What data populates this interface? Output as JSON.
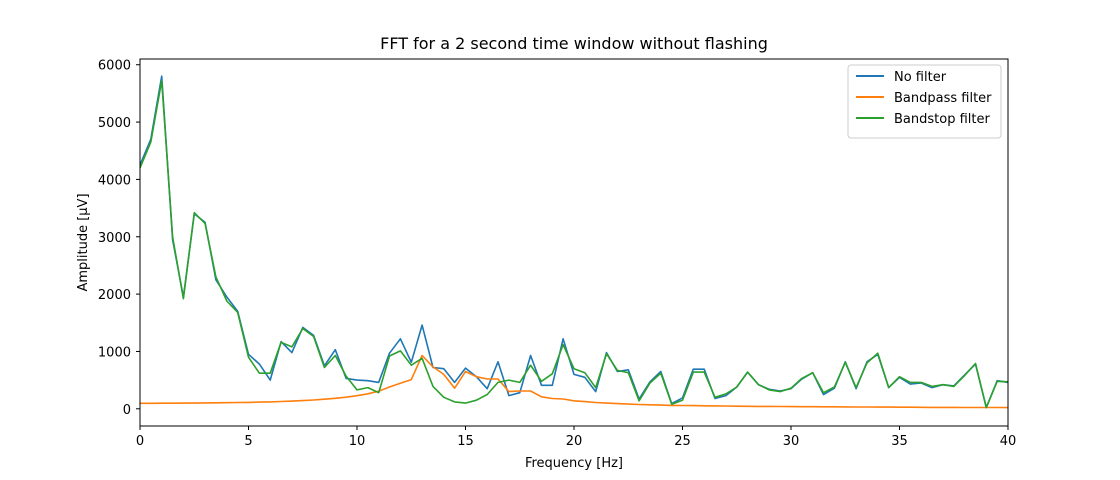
{
  "chart_data": {
    "type": "line",
    "title": "FFT for a 2 second time window without flashing",
    "xlabel": "Frequency [Hz]",
    "ylabel": "Amplitude [µV]",
    "xlim": [
      0,
      40
    ],
    "ylim": [
      -300,
      6100
    ],
    "xticks": [
      0,
      5,
      10,
      15,
      20,
      25,
      30,
      35,
      40
    ],
    "yticks": [
      0,
      1000,
      2000,
      3000,
      4000,
      5000,
      6000
    ],
    "grid": false,
    "legend_position": "top-right",
    "series": [
      {
        "name": "No filter",
        "color": "#1f77b4",
        "x": [
          0,
          0.5,
          1,
          1.5,
          2,
          2.5,
          3,
          3.5,
          4,
          4.5,
          5,
          5.5,
          6,
          6.5,
          7,
          7.5,
          8,
          8.5,
          9,
          9.5,
          10,
          10.5,
          11,
          11.5,
          12,
          12.5,
          13,
          13.5,
          14,
          14.5,
          15,
          15.5,
          16,
          16.5,
          17,
          17.5,
          18,
          18.5,
          19,
          19.5,
          20,
          20.5,
          21,
          21.5,
          22,
          22.5,
          23,
          23.5,
          24,
          24.5,
          25,
          25.5,
          26,
          26.5,
          27,
          27.5,
          28,
          28.5,
          29,
          29.5,
          30,
          30.5,
          31,
          31.5,
          32,
          32.5,
          33,
          33.5,
          34,
          34.5,
          35,
          35.5,
          36,
          36.5,
          37,
          37.5,
          38,
          38.5,
          39,
          39.5,
          40
        ],
        "values": [
          4250,
          4700,
          5800,
          2950,
          1950,
          3400,
          3250,
          2250,
          1950,
          1700,
          950,
          780,
          500,
          1170,
          980,
          1420,
          1280,
          750,
          1030,
          530,
          500,
          490,
          460,
          970,
          1220,
          810,
          1460,
          720,
          700,
          460,
          710,
          560,
          350,
          820,
          230,
          280,
          930,
          410,
          410,
          1220,
          600,
          550,
          300,
          980,
          650,
          680,
          170,
          470,
          650,
          90,
          190,
          690,
          690,
          180,
          230,
          380,
          640,
          420,
          340,
          310,
          350,
          520,
          630,
          250,
          360,
          820,
          350,
          820,
          950,
          370,
          550,
          430,
          450,
          370,
          420,
          400,
          590,
          780,
          20,
          490,
          460
        ]
      },
      {
        "name": "Bandpass filter",
        "color": "#ff7f0e",
        "x": [
          0,
          0.5,
          1,
          1.5,
          2,
          2.5,
          3,
          3.5,
          4,
          4.5,
          5,
          5.5,
          6,
          6.5,
          7,
          7.5,
          8,
          8.5,
          9,
          9.5,
          10,
          10.5,
          11,
          11.5,
          12,
          12.5,
          13,
          13.5,
          14,
          14.5,
          15,
          15.5,
          16,
          16.5,
          17,
          17.5,
          18,
          18.5,
          19,
          19.5,
          20,
          20.5,
          21,
          21.5,
          22,
          22.5,
          23,
          23.5,
          24,
          24.5,
          25,
          25.5,
          26,
          26.5,
          27,
          27.5,
          28,
          28.5,
          29,
          29.5,
          30,
          30.5,
          31,
          31.5,
          32,
          32.5,
          33,
          33.5,
          34,
          34.5,
          35,
          35.5,
          36,
          36.5,
          37,
          37.5,
          38,
          38.5,
          39,
          39.5,
          40
        ],
        "values": [
          95,
          96,
          97,
          98,
          99,
          100,
          102,
          104,
          106,
          109,
          112,
          116,
          121,
          127,
          134,
          143,
          154,
          167,
          183,
          203,
          228,
          262,
          307,
          380,
          445,
          510,
          930,
          730,
          600,
          360,
          650,
          560,
          520,
          520,
          300,
          310,
          310,
          210,
          180,
          170,
          140,
          125,
          110,
          100,
          90,
          82,
          75,
          70,
          65,
          60,
          58,
          55,
          52,
          50,
          48,
          46,
          44,
          42,
          41,
          40,
          38,
          37,
          36,
          35,
          34,
          33,
          32,
          31,
          30,
          29,
          28,
          27,
          26,
          25,
          25,
          24,
          23,
          23,
          22,
          22,
          21
        ]
      },
      {
        "name": "Bandstop filter",
        "color": "#2ca02c",
        "x": [
          0,
          0.5,
          1,
          1.5,
          2,
          2.5,
          3,
          3.5,
          4,
          4.5,
          5,
          5.5,
          6,
          6.5,
          7,
          7.5,
          8,
          8.5,
          9,
          9.5,
          10,
          10.5,
          11,
          11.5,
          12,
          12.5,
          13,
          13.5,
          14,
          14.5,
          15,
          15.5,
          16,
          16.5,
          17,
          17.5,
          18,
          18.5,
          19,
          19.5,
          20,
          20.5,
          21,
          21.5,
          22,
          22.5,
          23,
          23.5,
          24,
          24.5,
          25,
          25.5,
          26,
          26.5,
          27,
          27.5,
          28,
          28.5,
          29,
          29.5,
          30,
          30.5,
          31,
          31.5,
          32,
          32.5,
          33,
          33.5,
          34,
          34.5,
          35,
          35.5,
          36,
          36.5,
          37,
          37.5,
          38,
          38.5,
          39,
          39.5,
          40
        ],
        "values": [
          4200,
          4650,
          5720,
          3000,
          1920,
          3420,
          3230,
          2300,
          1880,
          1680,
          900,
          620,
          620,
          1160,
          1080,
          1400,
          1260,
          720,
          930,
          570,
          330,
          370,
          280,
          920,
          1010,
          760,
          880,
          390,
          200,
          120,
          100,
          150,
          250,
          460,
          500,
          460,
          760,
          480,
          610,
          1120,
          700,
          630,
          370,
          960,
          670,
          630,
          140,
          450,
          620,
          80,
          150,
          640,
          640,
          200,
          260,
          380,
          640,
          420,
          330,
          300,
          360,
          530,
          630,
          280,
          380,
          810,
          370,
          800,
          970,
          370,
          560,
          460,
          460,
          390,
          420,
          390,
          580,
          790,
          20,
          480,
          470
        ]
      }
    ]
  }
}
